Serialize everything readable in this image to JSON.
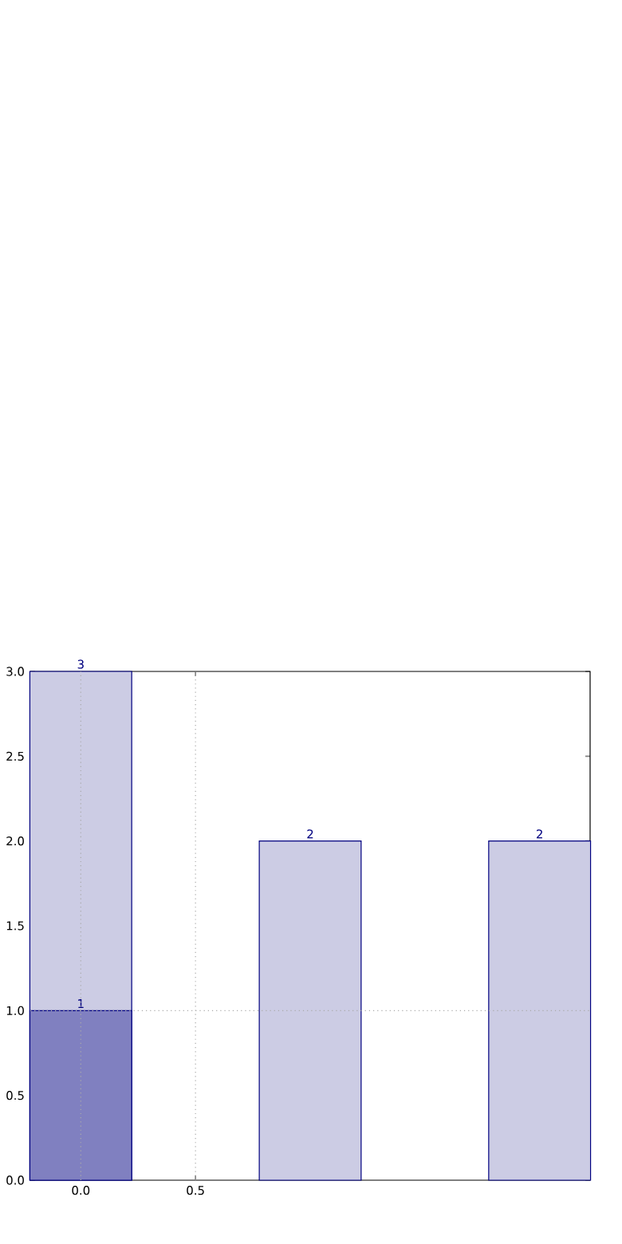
{
  "chart_data": {
    "type": "bar",
    "x": [
      0,
      1,
      2
    ],
    "series": [
      {
        "color": "#cccce4",
        "values": [
          3,
          2,
          2
        ]
      },
      {
        "color": "#8080c0",
        "values": [
          1,
          null,
          null
        ]
      }
    ],
    "xlim": [
      -0.22,
      2.22
    ],
    "ylim": [
      0,
      3
    ],
    "xticks": [
      {
        "value": 0,
        "label": "0.0"
      },
      {
        "value": 0.5,
        "label": "0.5"
      }
    ],
    "yticks": [
      {
        "value": 0,
        "label": "0.0"
      },
      {
        "value": 0.5,
        "label": "0.5"
      },
      {
        "value": 1,
        "label": "1.0"
      },
      {
        "value": 1.5,
        "label": "1.5"
      },
      {
        "value": 2,
        "label": "2.0"
      },
      {
        "value": 2.5,
        "label": "2.5"
      },
      {
        "value": 3,
        "label": "3.0"
      }
    ],
    "ref_lines": [
      {
        "axis": "x",
        "value": 0,
        "color": "#aaaaaa",
        "line_style": "dotted"
      },
      {
        "axis": "x",
        "value": 0.5,
        "color": "#aaaaaa",
        "line_style": "dotted"
      },
      {
        "axis": "y",
        "value": 1,
        "color": "#aaaaaa",
        "line_style": "dotted"
      }
    ],
    "data_labels": true
  }
}
